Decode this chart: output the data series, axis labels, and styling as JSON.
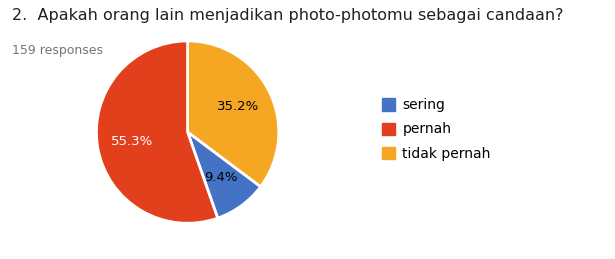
{
  "title": "2.  Apakah orang lain menjadikan photo-photomu sebagai candaan?",
  "subtitle": "159 responses",
  "labels": [
    "tidak pernah",
    "sering",
    "pernah"
  ],
  "values": [
    35.2,
    9.4,
    55.3
  ],
  "colors": [
    "#F5A623",
    "#4472C4",
    "#E2401C"
  ],
  "pct_labels": [
    "35.2%",
    "9.4%",
    "55.3%"
  ],
  "pct_text_colors": [
    "#000000",
    "#000000",
    "#ffffff"
  ],
  "legend_labels": [
    "sering",
    "pernah",
    "tidak pernah"
  ],
  "legend_colors": [
    "#4472C4",
    "#E2401C",
    "#F5A623"
  ],
  "startangle": 90,
  "background_color": "#ffffff",
  "title_fontsize": 11.5,
  "subtitle_fontsize": 9,
  "pct_fontsize": 9.5,
  "legend_fontsize": 10
}
